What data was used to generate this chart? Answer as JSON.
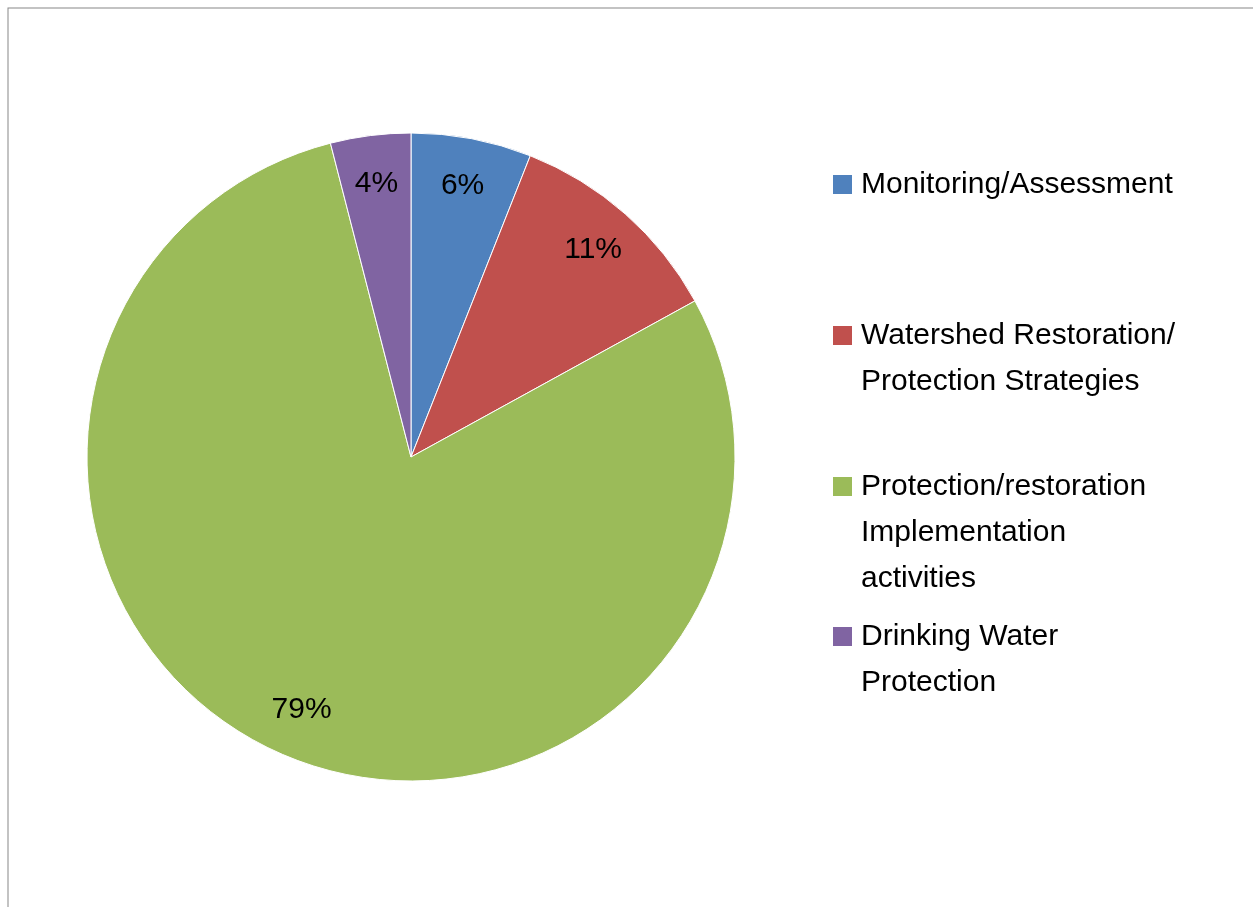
{
  "chart_data": {
    "type": "pie",
    "categories": [
      "Monitoring/Assessment",
      "Watershed Restoration/ Protection Strategies",
      "Protection/restoration Implementation activities",
      "Drinking Water Protection"
    ],
    "values": [
      6,
      11,
      79,
      4
    ],
    "colors": [
      "#4f81bd",
      "#c0504d",
      "#9bbb59",
      "#8064a2"
    ],
    "value_labels": [
      "6%",
      "11%",
      "79%",
      "4%"
    ],
    "legend": "right"
  }
}
